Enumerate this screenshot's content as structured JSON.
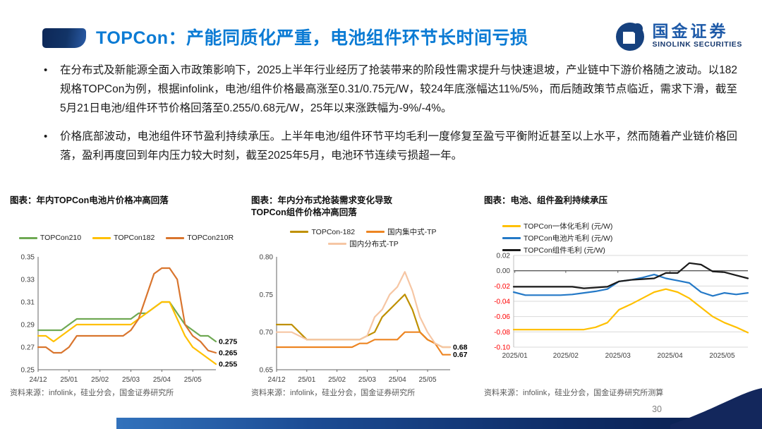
{
  "header": {
    "title": "TOPCon：产能同质化严重，电池组件环节长时间亏损",
    "logo_cn": "国金证券",
    "logo_en": "SINOLINK SECURITIES",
    "logo_icon": "sinolink-circle-logo"
  },
  "colors": {
    "title_blue": "#0B7BD4",
    "brand_navy": "#16417E",
    "negative_tick_red": "#FF0000",
    "source_gray": "#595959"
  },
  "bullets": [
    "在分布式及新能源全面入市政策影响下，2025上半年行业经历了抢装带来的阶段性需求提升与快速退坡，产业链中下游价格随之波动。以182规格TOPCon为例，根据infolink，电池/组件价格最高涨至0.31/0.75元/W，较24年底涨幅达11%/5%，而后随政策节点临近，需求下滑，截至5月21日电池/组件环节价格回落至0.255/0.68元/W，25年以来涨跌幅为-9%/-4%。",
    "价格底部波动，电池组件环节盈利持续承压。上半年电池/组件环节平均毛利一度修复至盈亏平衡附近甚至以上水平，然而随着产业链价格回落，盈利再度回到年内压力较大时刻，截至2025年5月，电池环节连续亏损超一年。"
  ],
  "page_number": "30",
  "chart_data": [
    {
      "type": "line",
      "title": "图表：年内TOPCon电池片价格冲高回落",
      "x_ticks": [
        "24/12",
        "25/01",
        "25/02",
        "25/03",
        "25/04",
        "25/05"
      ],
      "ylim": [
        0.25,
        0.35
      ],
      "y_ticks": [
        "0.35",
        "0.33",
        "0.31",
        "0.29",
        "0.27",
        "0.25"
      ],
      "grid": false,
      "legend_position": "top",
      "series": [
        {
          "name": "TOPCon210",
          "color": "#6FA953",
          "values": [
            0.285,
            0.285,
            0.285,
            0.285,
            0.29,
            0.295,
            0.295,
            0.295,
            0.295,
            0.295,
            0.295,
            0.295,
            0.295,
            0.3,
            0.3,
            0.305,
            0.31,
            0.31,
            0.3,
            0.29,
            0.285,
            0.28,
            0.28,
            0.275
          ]
        },
        {
          "name": "TOPCon182",
          "color": "#FFC000",
          "values": [
            0.28,
            0.28,
            0.275,
            0.28,
            0.285,
            0.29,
            0.29,
            0.29,
            0.29,
            0.29,
            0.29,
            0.29,
            0.29,
            0.295,
            0.3,
            0.305,
            0.31,
            0.31,
            0.295,
            0.28,
            0.27,
            0.265,
            0.26,
            0.255
          ]
        },
        {
          "name": "TOPCon210R",
          "color": "#D9752E",
          "values": [
            0.27,
            0.27,
            0.265,
            0.265,
            0.27,
            0.28,
            0.28,
            0.28,
            0.28,
            0.28,
            0.28,
            0.28,
            0.285,
            0.295,
            0.315,
            0.335,
            0.34,
            0.34,
            0.33,
            0.29,
            0.28,
            0.275,
            0.267,
            0.265
          ]
        }
      ],
      "end_labels": [
        {
          "text": "0.275",
          "value": 0.275
        },
        {
          "text": "0.265",
          "value": 0.265
        },
        {
          "text": "0.255",
          "value": 0.255
        }
      ],
      "source": "资料来源：infolink，硅业分会，国金证券研究所"
    },
    {
      "type": "line",
      "title": "图表：年内分布式抢装需求变化导致TOPCon组件价格冲高回落",
      "x_ticks": [
        "24/12",
        "25/01",
        "25/02",
        "25/03",
        "25/04",
        "25/05"
      ],
      "ylim": [
        0.65,
        0.8
      ],
      "y_ticks": [
        "0.80",
        "0.75",
        "0.70",
        "0.65"
      ],
      "grid": false,
      "legend_position": "top",
      "series": [
        {
          "name": "TOPCon-182",
          "color": "#BF9000",
          "values": [
            0.71,
            0.71,
            0.71,
            0.7,
            0.69,
            0.69,
            0.69,
            0.69,
            0.69,
            0.69,
            0.69,
            0.69,
            0.695,
            0.7,
            0.72,
            0.73,
            0.74,
            0.75,
            0.73,
            0.7,
            0.69,
            0.685,
            0.68,
            0.68
          ]
        },
        {
          "name": "国内集中式-TP",
          "color": "#ED8522",
          "values": [
            0.68,
            0.68,
            0.68,
            0.68,
            0.68,
            0.68,
            0.68,
            0.68,
            0.68,
            0.68,
            0.68,
            0.685,
            0.685,
            0.69,
            0.69,
            0.69,
            0.69,
            0.7,
            0.7,
            0.7,
            0.69,
            0.685,
            0.67,
            0.67
          ]
        },
        {
          "name": "国内分布式-TP",
          "color": "#F6C6A4",
          "values": [
            0.7,
            0.7,
            0.7,
            0.695,
            0.69,
            0.69,
            0.69,
            0.69,
            0.69,
            0.69,
            0.69,
            0.69,
            0.695,
            0.72,
            0.73,
            0.75,
            0.76,
            0.78,
            0.755,
            0.72,
            0.7,
            0.685,
            0.68,
            0.68
          ]
        }
      ],
      "end_labels": [
        {
          "text": "0.68",
          "value": 0.68
        },
        {
          "text": "0.67",
          "value": 0.67
        }
      ],
      "source": "资料来源：infolink，硅业分会，国金证券研究所"
    },
    {
      "type": "line",
      "title": "图表：电池、组件盈利持续承压",
      "x_ticks": [
        "2025/01",
        "2025/02",
        "2025/03",
        "2025/04",
        "2025/05"
      ],
      "ylim": [
        -0.1,
        0.02
      ],
      "y_ticks": [
        "0.02",
        "0.00",
        "-0.02",
        "-0.04",
        "-0.06",
        "-0.08",
        "-0.10"
      ],
      "grid": true,
      "legend_position": "top",
      "series": [
        {
          "name": "TOPCon一体化毛利 (元/W)",
          "color": "#FFC000",
          "values": [
            -0.077,
            -0.077,
            -0.077,
            -0.077,
            -0.077,
            -0.077,
            -0.077,
            -0.074,
            -0.068,
            -0.051,
            -0.044,
            -0.036,
            -0.028,
            -0.024,
            -0.028,
            -0.036,
            -0.048,
            -0.06,
            -0.068,
            -0.074,
            -0.081
          ]
        },
        {
          "name": "TOPCon电池片毛利 (元/W)",
          "color": "#2479C7",
          "values": [
            -0.028,
            -0.032,
            -0.032,
            -0.032,
            -0.032,
            -0.031,
            -0.029,
            -0.027,
            -0.024,
            -0.014,
            -0.012,
            -0.009,
            -0.005,
            -0.01,
            -0.013,
            -0.016,
            -0.028,
            -0.033,
            -0.029,
            -0.031,
            -0.029
          ]
        },
        {
          "name": "TOPCon组件毛利 (元/W)",
          "color": "#1A1A1A",
          "values": [
            -0.021,
            -0.021,
            -0.021,
            -0.021,
            -0.021,
            -0.021,
            -0.023,
            -0.022,
            -0.021,
            -0.014,
            -0.012,
            -0.011,
            -0.01,
            -0.003,
            -0.003,
            0.01,
            0.008,
            -0.001,
            -0.002,
            -0.006,
            -0.01
          ]
        }
      ],
      "end_labels": [],
      "source": "资料来源：infolink，硅业分会，国金证券研究所测算"
    }
  ]
}
